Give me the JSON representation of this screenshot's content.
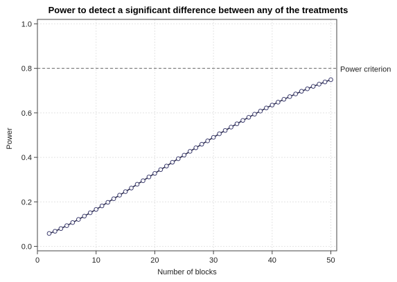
{
  "chart_data": {
    "type": "line",
    "title": "Power to detect a significant difference between any of the treatments",
    "xlabel": "Number of blocks",
    "ylabel": "Power",
    "xlim": [
      0,
      51
    ],
    "ylim": [
      -0.02,
      1.02
    ],
    "xticks": [
      0,
      10,
      20,
      30,
      40,
      50
    ],
    "xtick_labels": [
      "0",
      "10",
      "20",
      "30",
      "40",
      "50"
    ],
    "yticks": [
      0.0,
      0.2,
      0.4,
      0.6,
      0.8,
      1.0
    ],
    "ytick_labels": [
      "0.0",
      "0.2",
      "0.4",
      "0.6",
      "0.8",
      "1.0"
    ],
    "grid": true,
    "reference_line": {
      "y": 0.8,
      "label": "Power criterion"
    },
    "series": [
      {
        "marker": "open-circle",
        "color": "#2b2b4a",
        "marker_stroke": "#3c3c6e",
        "x": [
          2,
          3,
          4,
          5,
          6,
          7,
          8,
          9,
          10,
          11,
          12,
          13,
          14,
          15,
          16,
          17,
          18,
          19,
          20,
          21,
          22,
          23,
          24,
          25,
          26,
          27,
          28,
          29,
          30,
          31,
          32,
          33,
          34,
          35,
          36,
          37,
          38,
          39,
          40,
          41,
          42,
          43,
          44,
          45,
          46,
          47,
          48,
          49,
          50
        ],
        "y": [
          0.058,
          0.068,
          0.08,
          0.093,
          0.107,
          0.121,
          0.136,
          0.151,
          0.166,
          0.182,
          0.198,
          0.214,
          0.23,
          0.246,
          0.262,
          0.279,
          0.295,
          0.312,
          0.328,
          0.345,
          0.361,
          0.378,
          0.394,
          0.41,
          0.427,
          0.443,
          0.459,
          0.474,
          0.49,
          0.506,
          0.521,
          0.536,
          0.551,
          0.566,
          0.58,
          0.594,
          0.608,
          0.622,
          0.635,
          0.648,
          0.661,
          0.673,
          0.685,
          0.697,
          0.708,
          0.719,
          0.729,
          0.739,
          0.749
        ]
      }
    ]
  }
}
